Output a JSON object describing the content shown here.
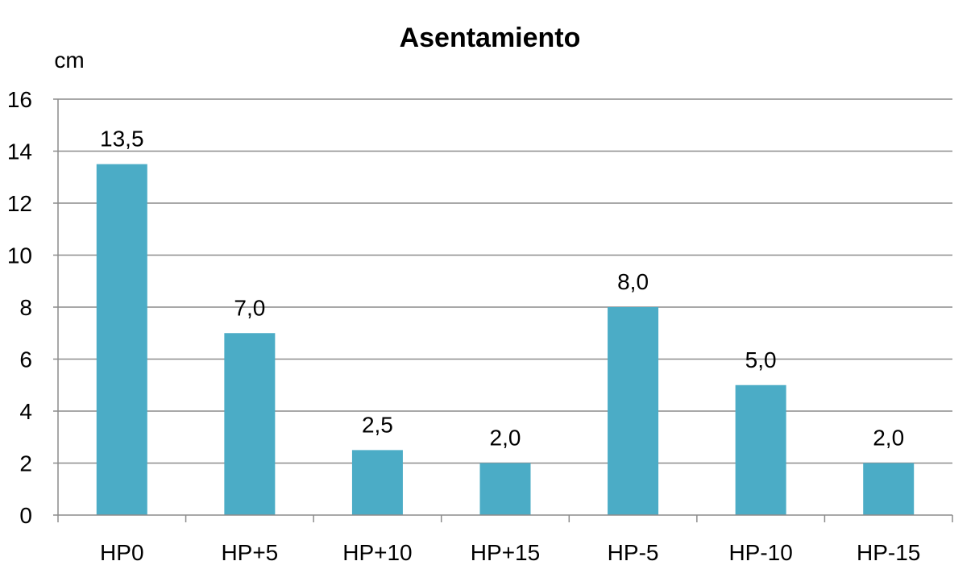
{
  "chart_data": {
    "type": "bar",
    "title": "Asentamiento",
    "ylabel": "cm",
    "xlabel": "",
    "categories": [
      "HP0",
      "HP+5",
      "HP+10",
      "HP+15",
      "HP-5",
      "HP-10",
      "HP-15"
    ],
    "values": [
      13.5,
      7.0,
      2.5,
      2.0,
      8.0,
      5.0,
      2.0
    ],
    "data_labels": [
      "13,5",
      "7,0",
      "2,5",
      "2,0",
      "8,0",
      "5,0",
      "2,0"
    ],
    "ylim": [
      0,
      16
    ],
    "yticks": [
      0,
      2,
      4,
      6,
      8,
      10,
      12,
      14,
      16
    ],
    "grid": true,
    "legend": "none",
    "bar_color": "#4BACC6"
  }
}
